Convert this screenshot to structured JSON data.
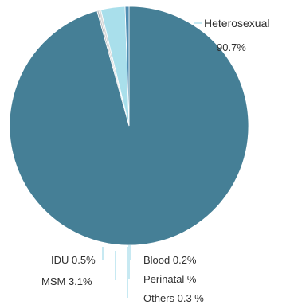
{
  "chart_data": {
    "type": "pie",
    "title": "",
    "slices": [
      {
        "label": "Heterosexual",
        "value": 90.7,
        "value_text": "90.7%",
        "color": "#457f96"
      },
      {
        "label": "Blood",
        "value": 0.2,
        "value_text": "0.2%",
        "color": "#b7b9bb"
      },
      {
        "label": "Perinatal",
        "value": 0.0,
        "value_text": "%",
        "color": "#7a95a3"
      },
      {
        "label": "Others",
        "value": 0.3,
        "value_text": "0.3 %",
        "color": "#d9d9d9"
      },
      {
        "label": "MSM",
        "value": 3.1,
        "value_text": "3.1%",
        "color": "#a9dfeb"
      },
      {
        "label": "IDU",
        "value": 0.5,
        "value_text": "0.5%",
        "color": "#4f8db2"
      }
    ],
    "labels": {
      "heterosexual_name": "Heterosexual",
      "heterosexual_value": "90.7%",
      "blood": "Blood 0.2%",
      "perinatal": "Perinatal %",
      "others": "Others 0.3 %",
      "idu": "IDU 0.5%",
      "msm": "MSM 3.1%"
    },
    "legend_placement": "none",
    "grid": false
  }
}
